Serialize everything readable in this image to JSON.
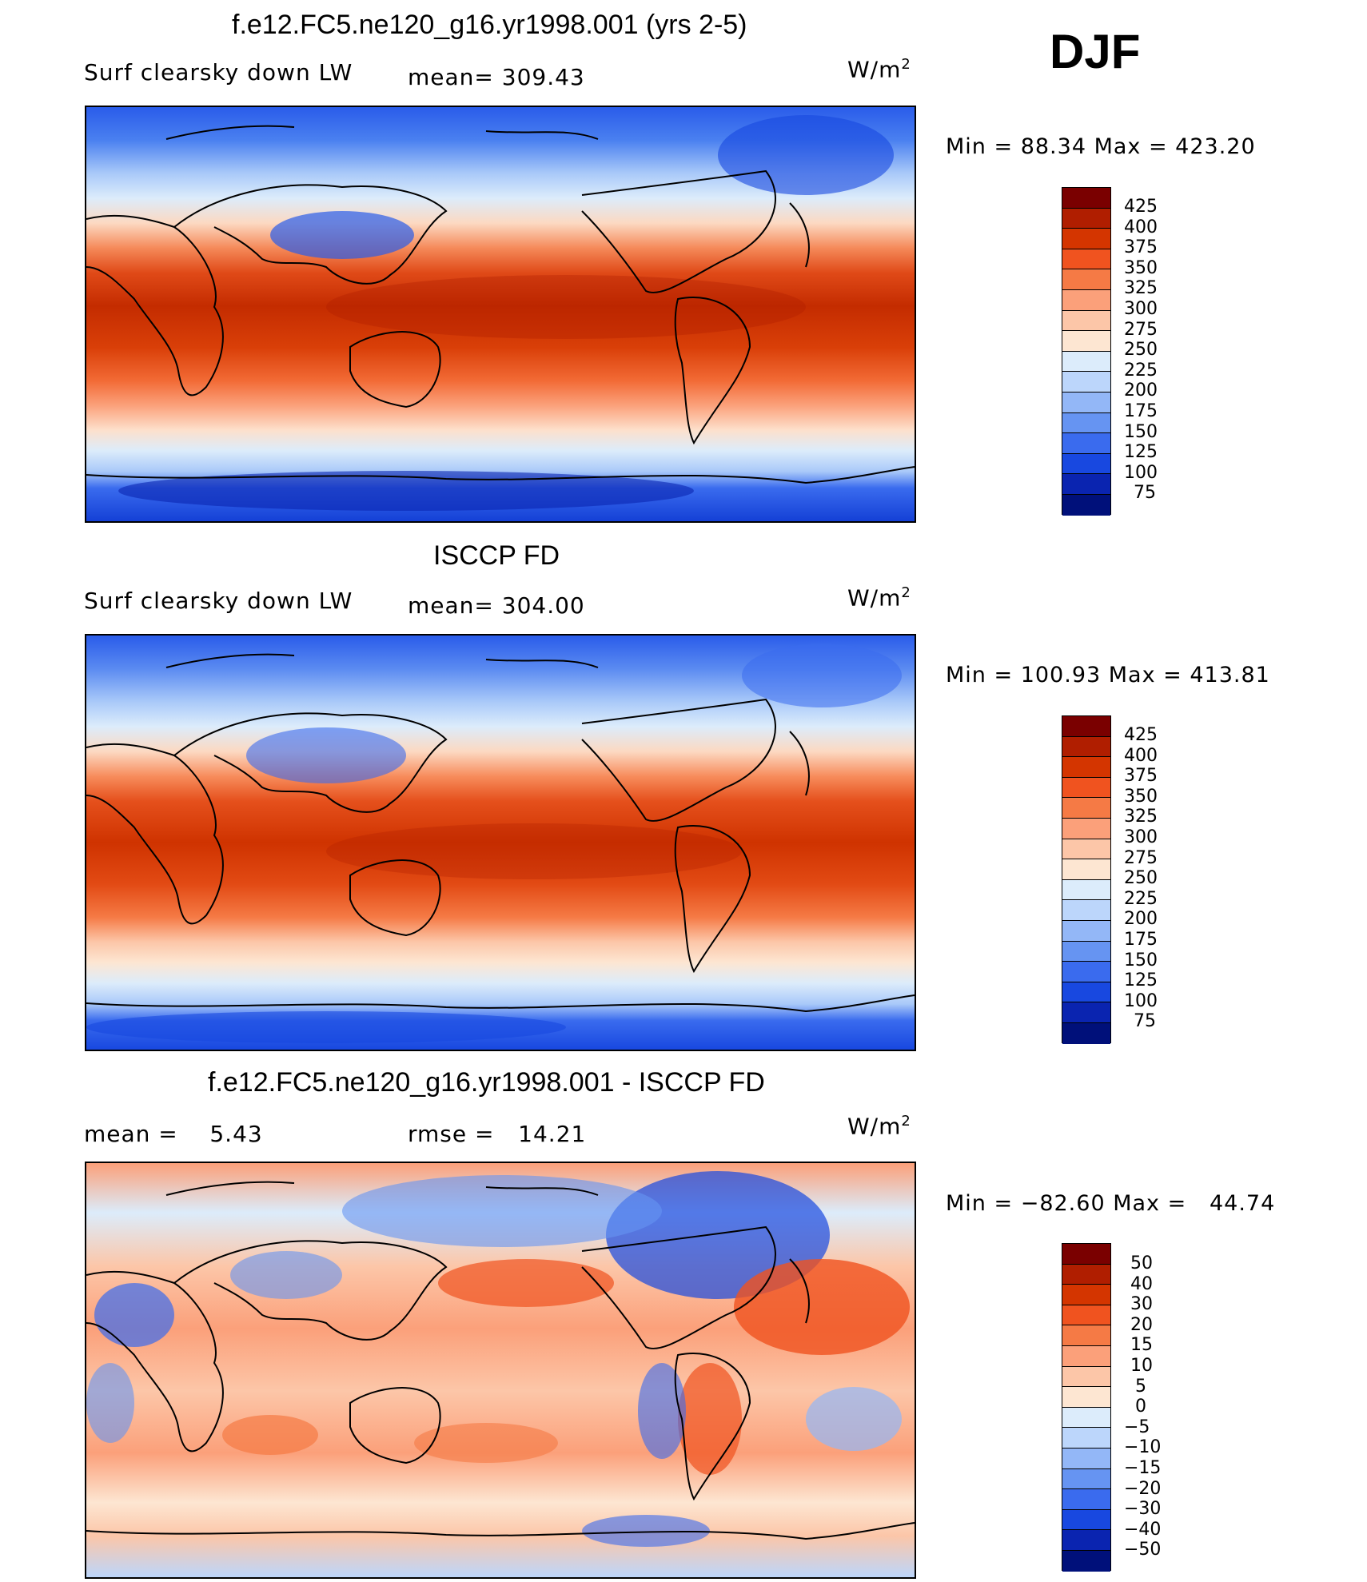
{
  "season": "DJF",
  "panels": [
    {
      "title": "f.e12.FC5.ne120_g16.yr1998.001 (yrs 2-5)",
      "left_label": "Surf clearsky down LW",
      "stat_label": "mean= 309.43",
      "units": "W/m",
      "units_sup": "2",
      "minmax": "Min =   88.34 Max = 423.20",
      "levels": [
        "425",
        "400",
        "375",
        "350",
        "325",
        "300",
        "275",
        "250",
        "225",
        "200",
        "175",
        "150",
        "125",
        "100",
        "75"
      ]
    },
    {
      "title": "ISCCP FD",
      "left_label": "Surf clearsky down LW",
      "stat_label": "mean= 304.00",
      "units": "W/m",
      "units_sup": "2",
      "minmax": "Min = 100.93 Max = 413.81",
      "levels": [
        "425",
        "400",
        "375",
        "350",
        "325",
        "300",
        "275",
        "250",
        "225",
        "200",
        "175",
        "150",
        "125",
        "100",
        "75"
      ]
    },
    {
      "title": "f.e12.FC5.ne120_g16.yr1998.001 - ISCCP FD",
      "left_label": "mean =    5.43",
      "stat_label": "rmse =   14.21",
      "units": "W/m",
      "units_sup": "2",
      "minmax": "Min = −82.60 Max =   44.74",
      "levels": [
        "50",
        "40",
        "30",
        "20",
        "15",
        "10",
        "5",
        "0",
        "−5",
        "−10",
        "−15",
        "−20",
        "−30",
        "−40",
        "−50"
      ]
    }
  ],
  "colors": {
    "scale": [
      "#7a0000",
      "#b01e00",
      "#d43500",
      "#f0531f",
      "#f57a45",
      "#fba07a",
      "#fcc6a8",
      "#fde6d2",
      "#dcecfb",
      "#bcd6fb",
      "#93b7f7",
      "#6694f2",
      "#3a6bee",
      "#1848e0",
      "#0a24b0",
      "#00107a"
    ]
  }
}
